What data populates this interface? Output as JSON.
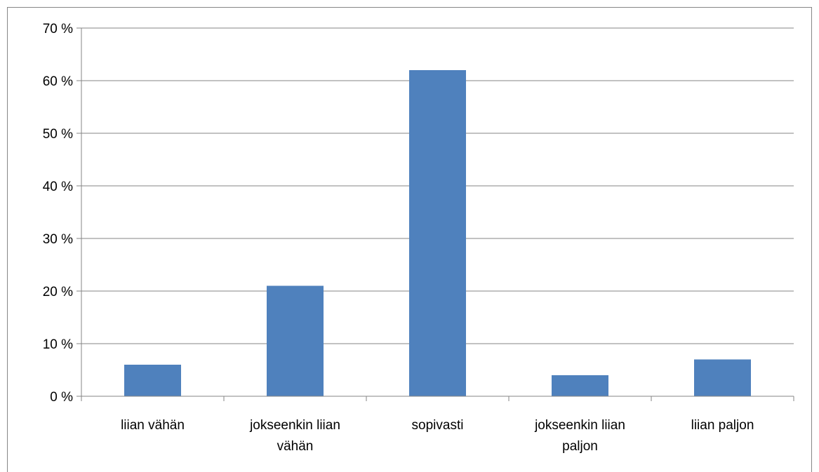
{
  "chart_data": {
    "type": "bar",
    "categories": [
      [
        "liian vähän"
      ],
      [
        "jokseenkin liian",
        "vähän"
      ],
      [
        "sopivasti"
      ],
      [
        "jokseenkin liian",
        "paljon"
      ],
      [
        "liian paljon"
      ]
    ],
    "values": [
      6,
      21,
      62,
      4,
      7
    ],
    "unit": "%",
    "ylim": [
      0,
      70
    ],
    "yticks": [
      0,
      10,
      20,
      30,
      40,
      50,
      60,
      70
    ],
    "ytick_labels": [
      "0 %",
      "10 %",
      "20 %",
      "30 %",
      "40 %",
      "50 %",
      "60 %",
      "70 %"
    ],
    "grid": true,
    "legend": "none",
    "bar_color": "#4f81bd",
    "grid_color": "#868686"
  }
}
